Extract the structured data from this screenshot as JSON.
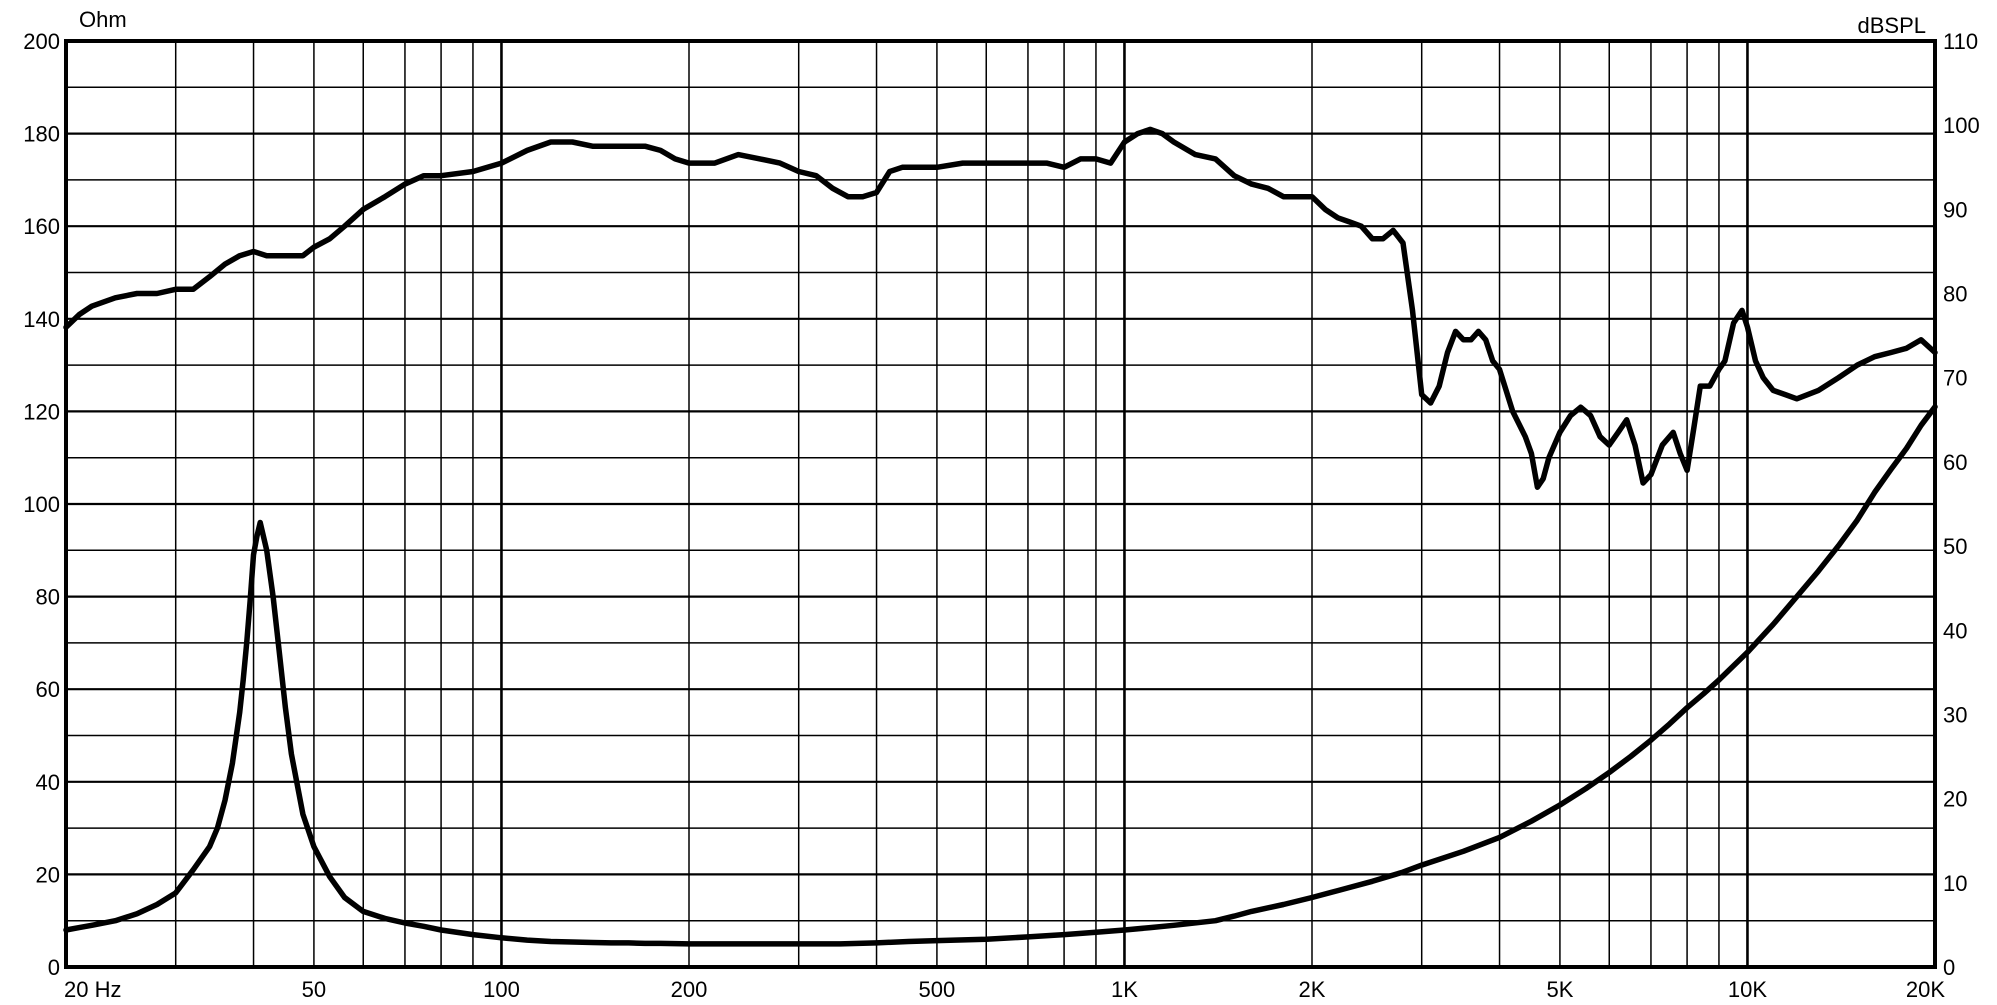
{
  "chart_data": {
    "type": "line",
    "x_scale": "log",
    "xlim": [
      20,
      20000
    ],
    "x_ticks": [
      {
        "value": 20,
        "label": "20 Hz"
      },
      {
        "value": 50,
        "label": "50"
      },
      {
        "value": 100,
        "label": "100"
      },
      {
        "value": 200,
        "label": "200"
      },
      {
        "value": 500,
        "label": "500"
      },
      {
        "value": 1000,
        "label": "1K"
      },
      {
        "value": 2000,
        "label": "2K"
      },
      {
        "value": 5000,
        "label": "5K"
      },
      {
        "value": 10000,
        "label": "10K"
      },
      {
        "value": 20000,
        "label": "20K"
      }
    ],
    "left_axis": {
      "label": "Ohm",
      "ylim": [
        0,
        200
      ],
      "ticks": [
        0,
        20,
        40,
        60,
        80,
        100,
        120,
        140,
        160,
        180,
        200
      ]
    },
    "right_axis": {
      "label": "dBSPL",
      "ylim": [
        0,
        110
      ],
      "ticks": [
        0,
        10,
        20,
        30,
        40,
        50,
        60,
        70,
        80,
        90,
        100,
        110
      ]
    },
    "grid": true,
    "series": [
      {
        "axis": "right",
        "color": "#000000",
        "x": [
          20,
          21,
          22,
          24,
          26,
          28,
          30,
          32,
          34,
          36,
          38,
          40,
          42,
          44,
          46,
          48,
          50,
          53,
          56,
          60,
          65,
          70,
          75,
          80,
          90,
          100,
          110,
          120,
          130,
          140,
          150,
          160,
          170,
          180,
          190,
          200,
          220,
          240,
          260,
          280,
          300,
          320,
          340,
          360,
          380,
          400,
          420,
          440,
          470,
          500,
          550,
          600,
          650,
          700,
          750,
          800,
          850,
          900,
          950,
          1000,
          1050,
          1100,
          1150,
          1200,
          1300,
          1400,
          1500,
          1600,
          1700,
          1800,
          1900,
          2000,
          2100,
          2200,
          2300,
          2400,
          2500,
          2600,
          2700,
          2800,
          2900,
          3000,
          3100,
          3200,
          3300,
          3400,
          3500,
          3600,
          3700,
          3800,
          3900,
          4000,
          4200,
          4400,
          4500,
          4600,
          4700,
          4800,
          5000,
          5200,
          5400,
          5600,
          5800,
          6000,
          6200,
          6400,
          6600,
          6800,
          7000,
          7300,
          7600,
          7800,
          8000,
          8200,
          8400,
          8700,
          9000,
          9200,
          9500,
          9800,
          10000,
          10300,
          10600,
          11000,
          11500,
          12000,
          12500,
          13000,
          14000,
          15000,
          16000,
          17000,
          18000,
          19000,
          20000
        ],
        "values": [
          76,
          77.5,
          78.5,
          79.5,
          80,
          80,
          80.5,
          80.5,
          82,
          83.5,
          84.5,
          85,
          84.5,
          84.5,
          84.5,
          84.5,
          85.5,
          86.5,
          88,
          90,
          91.5,
          93,
          94,
          94,
          94.5,
          95.5,
          97,
          98,
          98,
          97.5,
          97.5,
          97.5,
          97.5,
          97,
          96,
          95.5,
          95.5,
          96.5,
          96,
          95.5,
          94.5,
          94,
          92.5,
          91.5,
          91.5,
          92,
          94.5,
          95,
          95,
          95,
          95.5,
          95.5,
          95.5,
          95.5,
          95.5,
          95,
          96,
          96,
          95.5,
          98,
          99,
          99.5,
          99,
          98,
          96.5,
          96,
          94,
          93,
          92.5,
          91.5,
          91.5,
          91.5,
          90,
          89,
          88.5,
          88,
          86.5,
          86.5,
          87.5,
          86,
          78,
          68,
          67,
          69,
          73,
          75.5,
          74.5,
          74.5,
          75.5,
          74.5,
          72,
          71,
          66,
          63,
          61,
          57,
          58,
          60.5,
          63.5,
          65.5,
          66.5,
          65.5,
          63,
          62,
          63.5,
          65,
          62,
          57.5,
          58.5,
          62,
          63.5,
          61,
          59,
          64,
          69,
          69,
          71,
          72,
          76.5,
          78,
          76,
          72,
          70,
          68.5,
          68,
          67.5,
          68,
          68.5,
          70,
          71.5,
          72.5,
          73,
          73.5,
          74.5,
          73
        ]
      },
      {
        "axis": "left",
        "color": "#000000",
        "x": [
          20,
          21,
          22,
          24,
          26,
          28,
          30,
          32,
          34,
          35,
          36,
          37,
          38,
          38.5,
          39,
          39.5,
          40,
          40.5,
          41,
          42,
          43,
          44,
          45,
          46,
          48,
          50,
          53,
          56,
          60,
          65,
          70,
          75,
          80,
          90,
          100,
          110,
          120,
          130,
          140,
          150,
          160,
          170,
          180,
          200,
          220,
          250,
          300,
          350,
          400,
          450,
          500,
          600,
          700,
          800,
          900,
          1000,
          1100,
          1200,
          1400,
          1500,
          1600,
          1800,
          2000,
          2200,
          2500,
          2800,
          3000,
          3500,
          4000,
          4500,
          5000,
          5500,
          6000,
          6500,
          7000,
          7500,
          8000,
          8500,
          9000,
          10000,
          11000,
          12000,
          13000,
          14000,
          15000,
          16000,
          17000,
          18000,
          19000,
          20000
        ],
        "values": [
          8,
          8.5,
          9,
          10,
          11.5,
          13.5,
          16,
          21,
          26,
          30,
          36,
          44,
          55,
          62,
          70,
          79,
          89,
          93,
          96,
          90,
          80,
          68,
          56,
          46,
          33,
          26,
          19.5,
          15,
          12,
          10.5,
          9.5,
          8.8,
          8,
          7,
          6.3,
          5.8,
          5.5,
          5.4,
          5.3,
          5.2,
          5.2,
          5.1,
          5.1,
          5,
          5,
          5,
          5,
          5,
          5.2,
          5.5,
          5.7,
          6,
          6.5,
          7,
          7.5,
          8,
          8.5,
          9,
          10,
          11,
          12,
          13.5,
          15,
          16.5,
          18.5,
          20.5,
          22,
          25,
          28,
          31.5,
          35,
          38.5,
          42,
          45.5,
          49,
          52.5,
          56,
          59,
          62,
          68,
          74,
          80,
          85.5,
          91,
          96.5,
          102.5,
          107.5,
          112,
          117,
          121
        ]
      }
    ]
  }
}
